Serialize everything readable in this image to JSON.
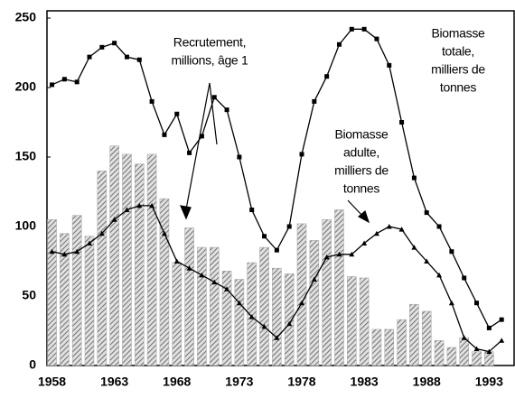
{
  "chart_data": {
    "type": "bar-line",
    "xlim": [
      1957.6,
      1995
    ],
    "xticks": [
      1958,
      1963,
      1968,
      1973,
      1978,
      1983,
      1988,
      1993
    ],
    "ylim": [
      0,
      250
    ],
    "yticks": [
      0,
      50,
      100,
      150,
      200,
      250
    ],
    "bars": {
      "color": "#aaaaaa",
      "x": [
        1958,
        1959,
        1960,
        1961,
        1962,
        1963,
        1964,
        1965,
        1966,
        1967,
        1968,
        1969,
        1970,
        1971,
        1972,
        1973,
        1974,
        1975,
        1976,
        1977,
        1978,
        1979,
        1980,
        1981,
        1982,
        1983,
        1984,
        1985,
        1986,
        1987,
        1988,
        1989,
        1990,
        1991,
        1992,
        1993
      ],
      "values": [
        105,
        95,
        108,
        93,
        140,
        158,
        152,
        145,
        152,
        120,
        74,
        99,
        85,
        85,
        68,
        62,
        74,
        85,
        70,
        66,
        102,
        90,
        105,
        112,
        64,
        63,
        26,
        26,
        33,
        44,
        39,
        18,
        13,
        20,
        10,
        10
      ]
    },
    "series": [
      {
        "color": "#000000",
        "marker": "square",
        "x": [
          1958,
          1959,
          1960,
          1961,
          1962,
          1963,
          1964,
          1965,
          1966,
          1967,
          1968,
          1969,
          1970,
          1971,
          1972,
          1973,
          1974,
          1975,
          1976,
          1977,
          1978,
          1979,
          1980,
          1981,
          1982,
          1983,
          1984,
          1985,
          1986,
          1987,
          1988,
          1989,
          1990,
          1991,
          1992,
          1993,
          1994
        ],
        "values": [
          202,
          206,
          204,
          222,
          229,
          232,
          222,
          220,
          190,
          166,
          181,
          153,
          165,
          193,
          184,
          150,
          112,
          93,
          83,
          100,
          152,
          190,
          208,
          231,
          242,
          242,
          235,
          216,
          175,
          135,
          110,
          100,
          82,
          63,
          45,
          27,
          33
        ]
      },
      {
        "color": "#000000",
        "marker": "triangle",
        "x": [
          1958,
          1959,
          1960,
          1961,
          1962,
          1963,
          1964,
          1965,
          1966,
          1967,
          1968,
          1969,
          1970,
          1971,
          1972,
          1973,
          1974,
          1975,
          1976,
          1977,
          1978,
          1979,
          1980,
          1981,
          1982,
          1983,
          1984,
          1985,
          1986,
          1987,
          1988,
          1989,
          1990,
          1991,
          1992,
          1993,
          1994
        ],
        "values": [
          82,
          80,
          82,
          88,
          95,
          105,
          112,
          115,
          115,
          95,
          75,
          70,
          65,
          60,
          55,
          45,
          35,
          28,
          20,
          30,
          45,
          62,
          78,
          80,
          80,
          88,
          95,
          100,
          98,
          85,
          75,
          65,
          45,
          20,
          12,
          10,
          18
        ]
      }
    ],
    "annotations": [
      {
        "lines": [
          "Recrutement,",
          "millions, âge 1"
        ]
      },
      {
        "lines": [
          "Biomasse",
          "totale,",
          "milliers de",
          "tonnes"
        ]
      },
      {
        "lines": [
          "Biomasse",
          "adulte,",
          "milliers de",
          "tonnes"
        ]
      }
    ]
  }
}
